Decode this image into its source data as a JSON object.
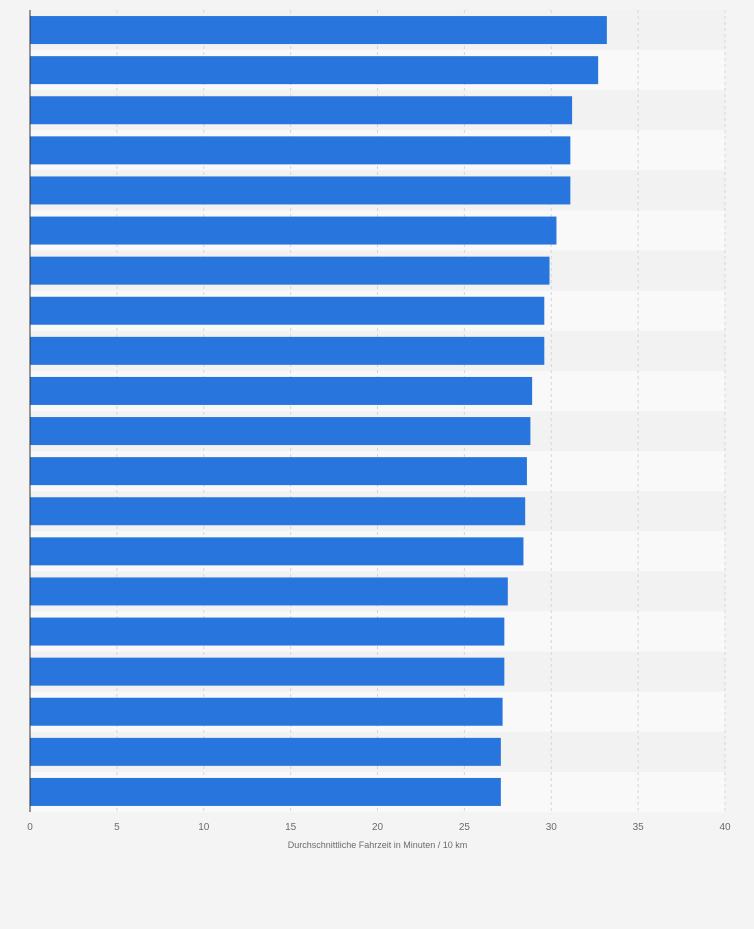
{
  "chart_data": {
    "type": "bar",
    "orientation": "horizontal",
    "values": [
      33.2,
      32.7,
      31.2,
      31.1,
      31.1,
      30.3,
      29.9,
      29.6,
      29.6,
      28.9,
      28.8,
      28.6,
      28.5,
      28.4,
      27.5,
      27.3,
      27.3,
      27.2,
      27.1,
      27.1
    ],
    "xlim": [
      0,
      40
    ],
    "xticks": [
      "0",
      "5",
      "10",
      "15",
      "20",
      "25",
      "30",
      "35",
      "40"
    ],
    "xlabel": "Durchschnittliche Fahrzeit in Minuten / 10 km",
    "grid": "vertical dashed",
    "colors": {
      "bar": "#2876dd",
      "band_light": "#f9f9f9",
      "band_dark": "#f2f2f2",
      "grid": "#d6d6d6",
      "axis": "#333333",
      "text": "#6b6b6b"
    }
  }
}
